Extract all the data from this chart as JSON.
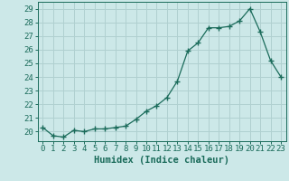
{
  "x": [
    0,
    1,
    2,
    3,
    4,
    5,
    6,
    7,
    8,
    9,
    10,
    11,
    12,
    13,
    14,
    15,
    16,
    17,
    18,
    19,
    20,
    21,
    22,
    23
  ],
  "y": [
    20.3,
    19.7,
    19.6,
    20.1,
    20.0,
    20.2,
    20.2,
    20.3,
    20.4,
    20.9,
    21.5,
    21.9,
    22.5,
    23.7,
    25.9,
    26.5,
    27.6,
    27.6,
    27.7,
    28.1,
    29.0,
    27.3,
    25.2,
    24.0
  ],
  "line_color": "#1a6b5a",
  "marker": "+",
  "marker_size": 4,
  "marker_linewidth": 1.0,
  "bg_color": "#cce8e8",
  "grid_color": "#b0d0d0",
  "axis_color": "#1a6b5a",
  "xlabel": "Humidex (Indice chaleur)",
  "xlim": [
    -0.5,
    23.5
  ],
  "ylim": [
    19.3,
    29.5
  ],
  "yticks": [
    20,
    21,
    22,
    23,
    24,
    25,
    26,
    27,
    28,
    29
  ],
  "xticks": [
    0,
    1,
    2,
    3,
    4,
    5,
    6,
    7,
    8,
    9,
    10,
    11,
    12,
    13,
    14,
    15,
    16,
    17,
    18,
    19,
    20,
    21,
    22,
    23
  ],
  "xlabel_fontsize": 7.5,
  "tick_fontsize": 6.5,
  "tick_color": "#1a6b5a",
  "line_width": 0.9
}
